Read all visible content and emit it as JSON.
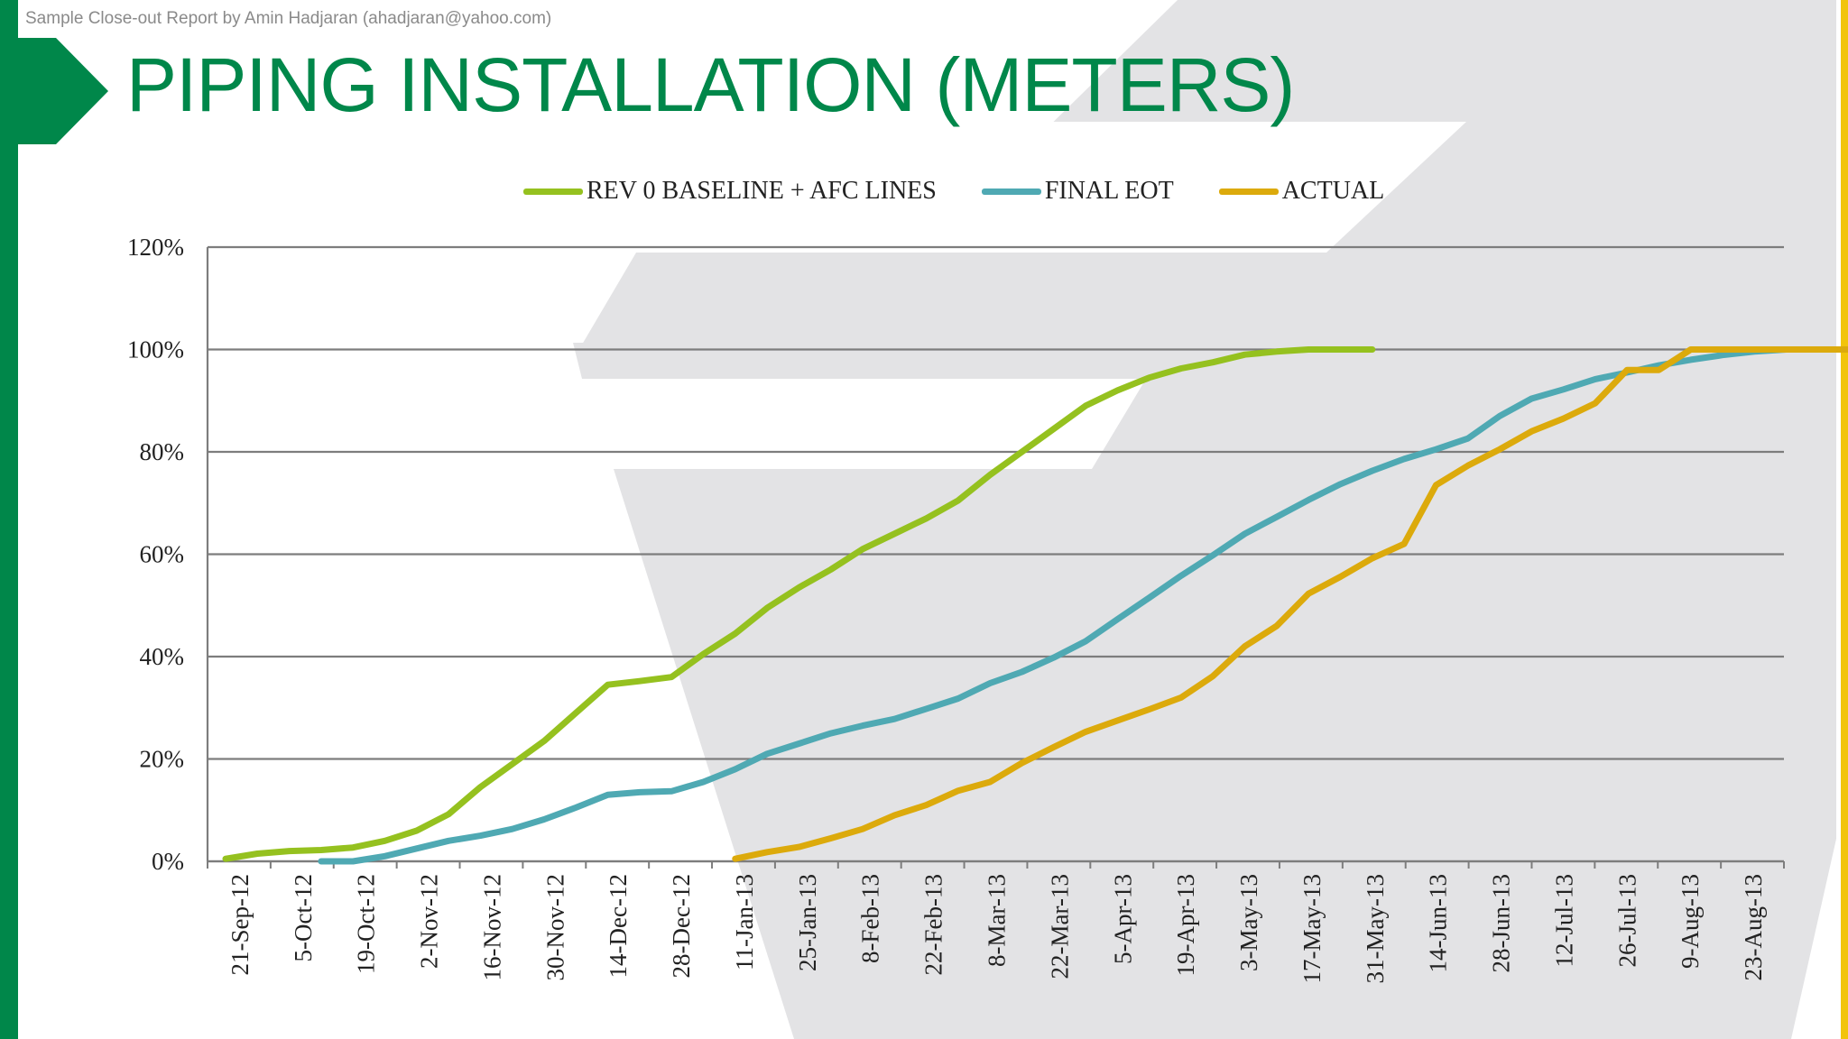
{
  "header": {
    "source_note": "Sample Close-out Report by Amin Hadjaran (ahadjaran@yahoo.com)",
    "title": "PIPING INSTALLATION (METERS)"
  },
  "colors": {
    "brand_green": "#00874a",
    "accent_yellow": "#f2c40a",
    "baseline": "#95c11f",
    "final_eot": "#4fa9b3",
    "actual": "#dcaa0c"
  },
  "chart_data": {
    "type": "line",
    "title": "PIPING INSTALLATION (METERS)",
    "xlabel": "",
    "ylabel": "",
    "ylim": [
      0,
      1.2
    ],
    "y_ticks": [
      "0%",
      "20%",
      "40%",
      "60%",
      "80%",
      "100%",
      "120%"
    ],
    "x_ticks": [
      "21-Sep-12",
      "5-Oct-12",
      "19-Oct-12",
      "2-Nov-12",
      "16-Nov-12",
      "30-Nov-12",
      "14-Dec-12",
      "28-Dec-12",
      "11-Jan-13",
      "25-Jan-13",
      "8-Feb-13",
      "22-Feb-13",
      "8-Mar-13",
      "22-Mar-13",
      "5-Apr-13",
      "19-Apr-13",
      "3-May-13",
      "17-May-13",
      "31-May-13",
      "14-Jun-13",
      "28-Jun-13",
      "12-Jul-13",
      "26-Jul-13",
      "9-Aug-13",
      "23-Aug-13"
    ],
    "x_unit": "weeks from 21-Sep-12",
    "grid": true,
    "legend_position": "top",
    "series": [
      {
        "name": "REV 0 BASELINE + AFC LINES",
        "color": "#95c11f",
        "x": [
          0,
          1,
          2,
          3,
          4,
          5,
          6,
          7,
          8,
          9,
          10,
          11,
          12,
          13,
          14,
          15,
          16,
          17,
          18,
          19,
          20,
          21,
          22,
          23,
          24,
          25,
          26,
          27,
          28,
          29,
          30,
          31,
          32,
          33,
          34,
          35,
          36
        ],
        "values": [
          0.005,
          0.015,
          0.02,
          0.022,
          0.027,
          0.04,
          0.06,
          0.092,
          0.145,
          0.19,
          0.235,
          0.29,
          0.345,
          0.352,
          0.36,
          0.405,
          0.445,
          0.495,
          0.535,
          0.57,
          0.61,
          0.64,
          0.67,
          0.705,
          0.755,
          0.8,
          0.845,
          0.89,
          0.92,
          0.945,
          0.963,
          0.975,
          0.99,
          0.996,
          1.0,
          1.0,
          1.0
        ]
      },
      {
        "name": "FINAL EOT",
        "color": "#4fa9b3",
        "x": [
          3,
          4,
          5,
          6,
          7,
          8,
          9,
          10,
          11,
          12,
          13,
          14,
          15,
          16,
          17,
          18,
          19,
          20,
          21,
          22,
          23,
          24,
          25,
          26,
          27,
          28,
          29,
          30,
          31,
          32,
          33,
          34,
          35,
          36,
          37,
          38,
          39,
          40,
          41,
          42,
          43,
          44,
          45,
          46,
          47,
          48,
          49,
          50,
          51
        ],
        "values": [
          0.0,
          0.0,
          0.01,
          0.025,
          0.04,
          0.05,
          0.063,
          0.082,
          0.105,
          0.13,
          0.135,
          0.137,
          0.155,
          0.18,
          0.21,
          0.23,
          0.25,
          0.265,
          0.278,
          0.298,
          0.318,
          0.348,
          0.37,
          0.398,
          0.43,
          0.473,
          0.515,
          0.558,
          0.598,
          0.64,
          0.673,
          0.706,
          0.737,
          0.763,
          0.786,
          0.805,
          0.826,
          0.87,
          0.904,
          0.922,
          0.942,
          0.955,
          0.969,
          0.98,
          0.989,
          0.996,
          1.0,
          1.0,
          1.0
        ]
      },
      {
        "name": "ACTUAL",
        "color": "#dcaa0c",
        "x": [
          16,
          17,
          18,
          19,
          20,
          21,
          22,
          23,
          24,
          25,
          26,
          27,
          28,
          29,
          30,
          31,
          32,
          33,
          34,
          35,
          36,
          37,
          38,
          39,
          40,
          41,
          42,
          43,
          44,
          45,
          46,
          47,
          48,
          49,
          50,
          51
        ],
        "values": [
          0.005,
          0.018,
          0.028,
          0.045,
          0.063,
          0.09,
          0.11,
          0.138,
          0.155,
          0.192,
          0.223,
          0.253,
          0.275,
          0.297,
          0.32,
          0.362,
          0.42,
          0.46,
          0.523,
          0.556,
          0.592,
          0.62,
          0.735,
          0.773,
          0.805,
          0.84,
          0.865,
          0.895,
          0.96,
          0.96,
          1.0,
          1.0,
          1.0,
          1.0,
          1.0,
          1.0
        ]
      }
    ]
  }
}
